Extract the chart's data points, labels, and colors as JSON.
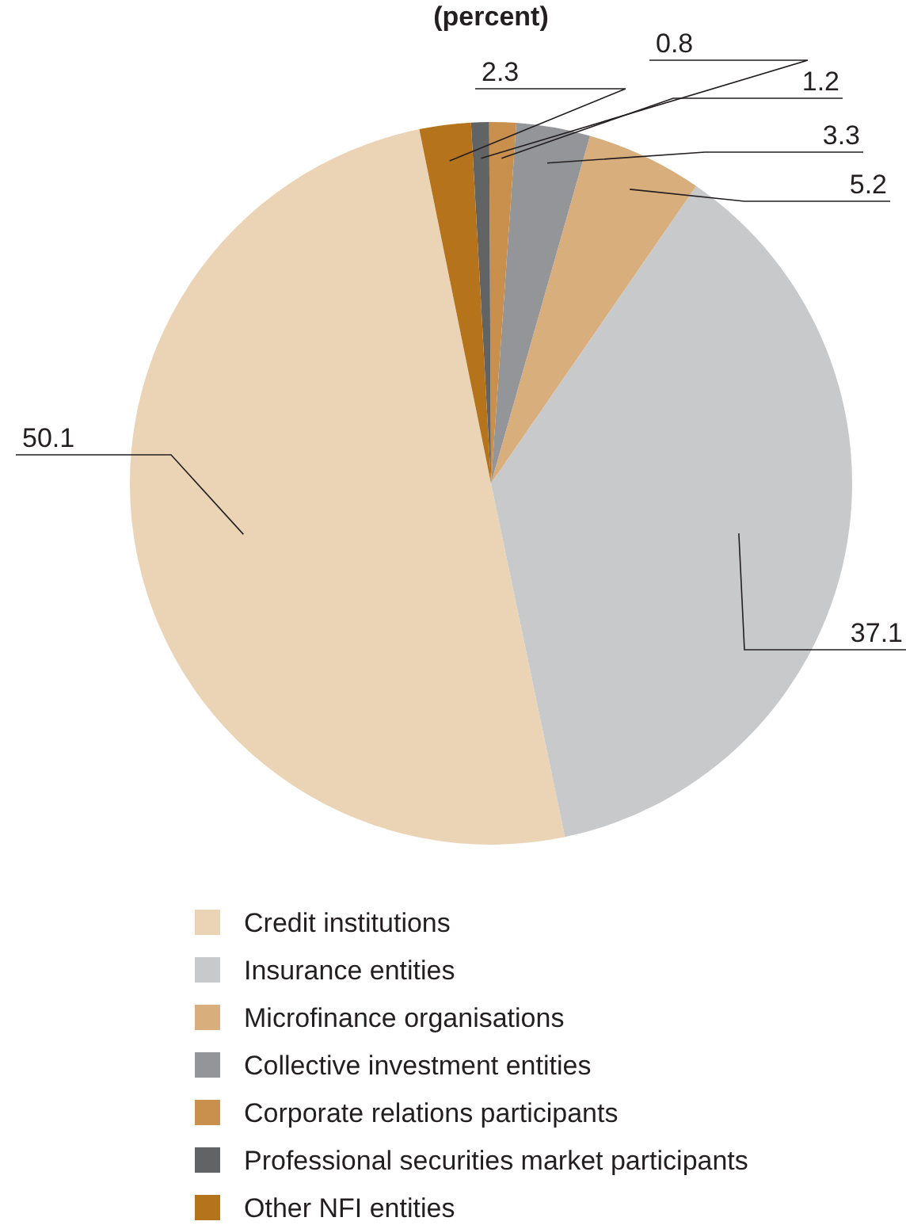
{
  "chart_data": {
    "type": "pie",
    "title": "(percent)",
    "categories": [
      "Credit institutions",
      "Insurance entities",
      "Microfinance organisations",
      "Collective investment entities",
      "Corporate relations participants",
      "Professional securities market participants",
      "Other NFI entities"
    ],
    "values": [
      50.1,
      37.1,
      5.2,
      3.3,
      1.2,
      0.8,
      2.3
    ],
    "colors": [
      "#ebd4b5",
      "#c8c9cb",
      "#d8ae7c",
      "#939598",
      "#c98f4c",
      "#626365",
      "#b5731b"
    ],
    "data_labels": true,
    "legend": "bottom"
  }
}
